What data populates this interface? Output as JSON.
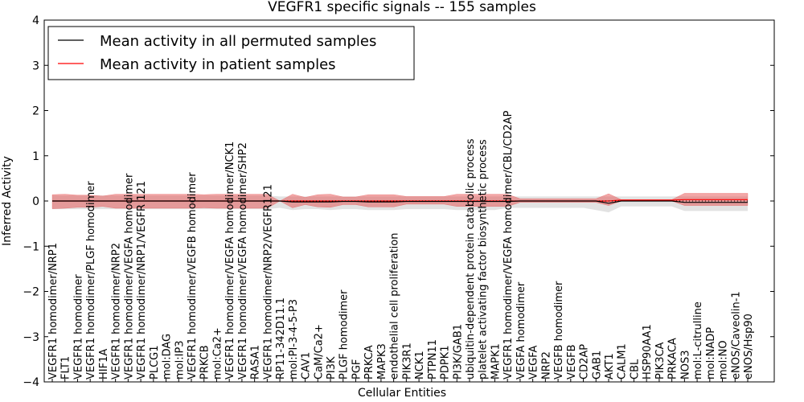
{
  "chart_data": {
    "type": "line",
    "title": "VEGFR1 specific signals -- 155 samples",
    "xlabel": "Cellular Entities",
    "ylabel": "Inferred Activity",
    "ylim": [
      -4,
      4
    ],
    "yticks": [
      -4,
      -3,
      -2,
      -1,
      0,
      1,
      2,
      3,
      4
    ],
    "ytick_labels": [
      "−4",
      "−3",
      "−2",
      "−1",
      "0",
      "1",
      "2",
      "3",
      "4"
    ],
    "legend_position": "top-left",
    "legend": [
      {
        "label": "Mean activity in all permuted samples",
        "color": "#000000"
      },
      {
        "label": "Mean activity in patient samples",
        "color": "#ff0000"
      }
    ],
    "categories": [
      "VEGFR1 homodimer/NRP1",
      "FLT1",
      "VEGFR1 homodimer",
      "VEGFR1 homodimer/PLGF homodimer",
      "HIF1A",
      "VEGFR1 homodimer/NRP2",
      "VEGFR1 homodimer/VEGFA homodimer",
      "VEGFR1 homodimer/NRP1/VEGFR 121",
      "PLCG1",
      "mol:DAG",
      "mol:IP3",
      "VEGFR1 homodimer/VEGFB homodimer",
      "PRKCB",
      "mol:Ca2+",
      "VEGFR1 homodimer/VEGFA homodimer/NCK1",
      "VEGFR1 homodimer/VEGFA homodimer/SHP2",
      "RASA1",
      "VEGFR1 homodimer/NRP2/VEGFR121",
      "RP11-342D11.1",
      "mol:PI-3-4-5-P3",
      "CAV1",
      "CaM/Ca2+",
      "PI3K",
      "PLGF homodimer",
      "PGF",
      "PRKCA",
      "MAPK3",
      "endothelial cell proliferation",
      "PIK3R1",
      "NCK1",
      "PTPN11",
      "PDPK1",
      "PI3K/GAB1",
      "ubiquitin-dependent protein catabolic process",
      "platelet activating factor biosynthetic process",
      "MAPK1",
      "VEGFR1 homodimer/VEGFA homodimer/CBL/CD2AP",
      "VEGFA homodimer",
      "VEGFA",
      "NRP2",
      "VEGFB homodimer",
      "VEGFB",
      "CD2AP",
      "GAB1",
      "AKT1",
      "CALM1",
      "CBL",
      "HSP90AA1",
      "PIK3CA",
      "PRKACA",
      "NOS3",
      "mol:L-citrulline",
      "mol:NADP",
      "mol:NO",
      "eNOS/Caveolin-1",
      "eNOS/Hsp90"
    ],
    "series": [
      {
        "name": "Mean activity in all permuted samples",
        "color": "#000000",
        "values": [
          0,
          0,
          0,
          0,
          0,
          0,
          0,
          0,
          0,
          0,
          0,
          0,
          0,
          0,
          0,
          0,
          0,
          0,
          0,
          -0.02,
          -0.02,
          -0.02,
          -0.02,
          -0.01,
          -0.01,
          -0.02,
          -0.02,
          -0.02,
          -0.01,
          -0.01,
          -0.01,
          -0.01,
          -0.01,
          -0.01,
          -0.01,
          -0.01,
          -0.01,
          0,
          0,
          0,
          0,
          0,
          0,
          0,
          -0.05,
          0,
          0,
          0,
          0,
          0,
          -0.03,
          -0.03,
          -0.03,
          -0.03,
          -0.03,
          -0.03
        ],
        "band_upper": [
          0.12,
          0.12,
          0.12,
          0.12,
          0.12,
          0.12,
          0.12,
          0.12,
          0.12,
          0.12,
          0.12,
          0.12,
          0.12,
          0.12,
          0.12,
          0.12,
          0.12,
          0.12,
          0.1,
          0.1,
          0.1,
          0.1,
          0.1,
          0.1,
          0.1,
          0.1,
          0.1,
          0.1,
          0.1,
          0.1,
          0.1,
          0.1,
          0.1,
          0.1,
          0.1,
          0.1,
          0.1,
          0.1,
          0.1,
          0.1,
          0.1,
          0.1,
          0.1,
          0.1,
          0.1,
          0.1,
          0.1,
          0.1,
          0.1,
          0.1,
          0.1,
          0.1,
          0.1,
          0.1,
          0.1,
          0.1
        ],
        "band_lower": [
          -0.18,
          -0.18,
          -0.18,
          -0.18,
          -0.18,
          -0.18,
          -0.18,
          -0.18,
          -0.18,
          -0.18,
          -0.18,
          -0.18,
          -0.18,
          -0.18,
          -0.18,
          -0.18,
          -0.18,
          -0.18,
          -0.15,
          -0.2,
          -0.18,
          -0.18,
          -0.2,
          -0.18,
          -0.18,
          -0.2,
          -0.2,
          -0.2,
          -0.18,
          -0.18,
          -0.18,
          -0.18,
          -0.2,
          -0.2,
          -0.2,
          -0.2,
          -0.15,
          -0.15,
          -0.15,
          -0.15,
          -0.15,
          -0.15,
          -0.15,
          -0.2,
          -0.25,
          -0.12,
          -0.12,
          -0.12,
          -0.12,
          -0.12,
          -0.22,
          -0.22,
          -0.22,
          -0.22,
          -0.22,
          -0.22
        ]
      },
      {
        "name": "Mean activity in patient samples",
        "color": "#ff0000",
        "values": [
          0,
          0,
          0,
          0,
          0,
          0,
          0,
          0,
          0,
          0,
          0,
          0,
          0,
          0,
          0,
          0,
          0,
          0,
          0,
          0,
          0,
          0,
          0,
          0,
          0,
          0,
          0,
          0,
          0,
          0,
          0,
          0,
          0,
          0,
          0,
          0,
          0,
          0,
          0,
          0,
          0,
          0,
          0,
          0,
          0,
          0.02,
          0.02,
          0.02,
          0.02,
          0.02,
          0.03,
          0.03,
          0.03,
          0.03,
          0.03,
          0.03
        ],
        "band_upper": [
          0.14,
          0.15,
          0.13,
          0.13,
          0.11,
          0.15,
          0.15,
          0.15,
          0.15,
          0.15,
          0.15,
          0.15,
          0.14,
          0.15,
          0.15,
          0.15,
          0.15,
          0.15,
          0.0,
          0.15,
          0.08,
          0.14,
          0.15,
          0.09,
          0.09,
          0.14,
          0.14,
          0.14,
          0.1,
          0.1,
          0.1,
          0.1,
          0.15,
          0.15,
          0.15,
          0.15,
          0.15,
          0.05,
          0.05,
          0.05,
          0.05,
          0.05,
          0.05,
          0.05,
          0.16,
          0.03,
          0.03,
          0.03,
          0.03,
          0.03,
          0.17,
          0.17,
          0.17,
          0.17,
          0.17,
          0.17
        ],
        "band_lower": [
          -0.17,
          -0.16,
          -0.14,
          -0.14,
          -0.12,
          -0.16,
          -0.16,
          -0.16,
          -0.16,
          -0.16,
          -0.16,
          -0.16,
          -0.15,
          -0.16,
          -0.16,
          -0.16,
          -0.16,
          -0.16,
          0.0,
          -0.15,
          -0.08,
          -0.13,
          -0.14,
          -0.08,
          -0.08,
          -0.13,
          -0.13,
          -0.13,
          -0.07,
          -0.07,
          -0.07,
          -0.07,
          -0.12,
          -0.12,
          -0.12,
          -0.12,
          -0.12,
          -0.03,
          -0.03,
          -0.03,
          -0.03,
          -0.03,
          -0.03,
          -0.03,
          -0.1,
          0,
          0,
          0,
          0,
          0,
          -0.1,
          -0.1,
          -0.1,
          -0.1,
          -0.1,
          -0.1
        ]
      }
    ]
  }
}
